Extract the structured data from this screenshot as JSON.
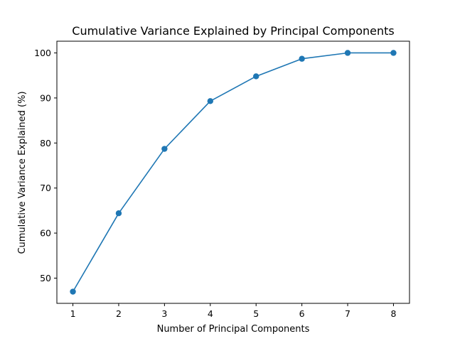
{
  "chart_data": {
    "type": "line",
    "title": "Cumulative Variance Explained by Principal Components",
    "xlabel": "Number of Principal Components",
    "ylabel": "Cumulative Variance Explained (%)",
    "x": [
      1,
      2,
      3,
      4,
      5,
      6,
      7,
      8
    ],
    "x_ticks": [
      "1",
      "2",
      "3",
      "4",
      "5",
      "6",
      "7",
      "8"
    ],
    "y_ticks": [
      "50",
      "60",
      "70",
      "80",
      "90",
      "100"
    ],
    "xlim": [
      0.65,
      8.35
    ],
    "ylim": [
      44.4,
      102.6
    ],
    "series": [
      {
        "values": [
          47.0,
          64.4,
          78.7,
          89.3,
          94.8,
          98.7,
          100.0,
          100.0
        ],
        "color": "#1f77b4",
        "marker": "circle"
      }
    ],
    "grid": false,
    "legend": "none"
  }
}
